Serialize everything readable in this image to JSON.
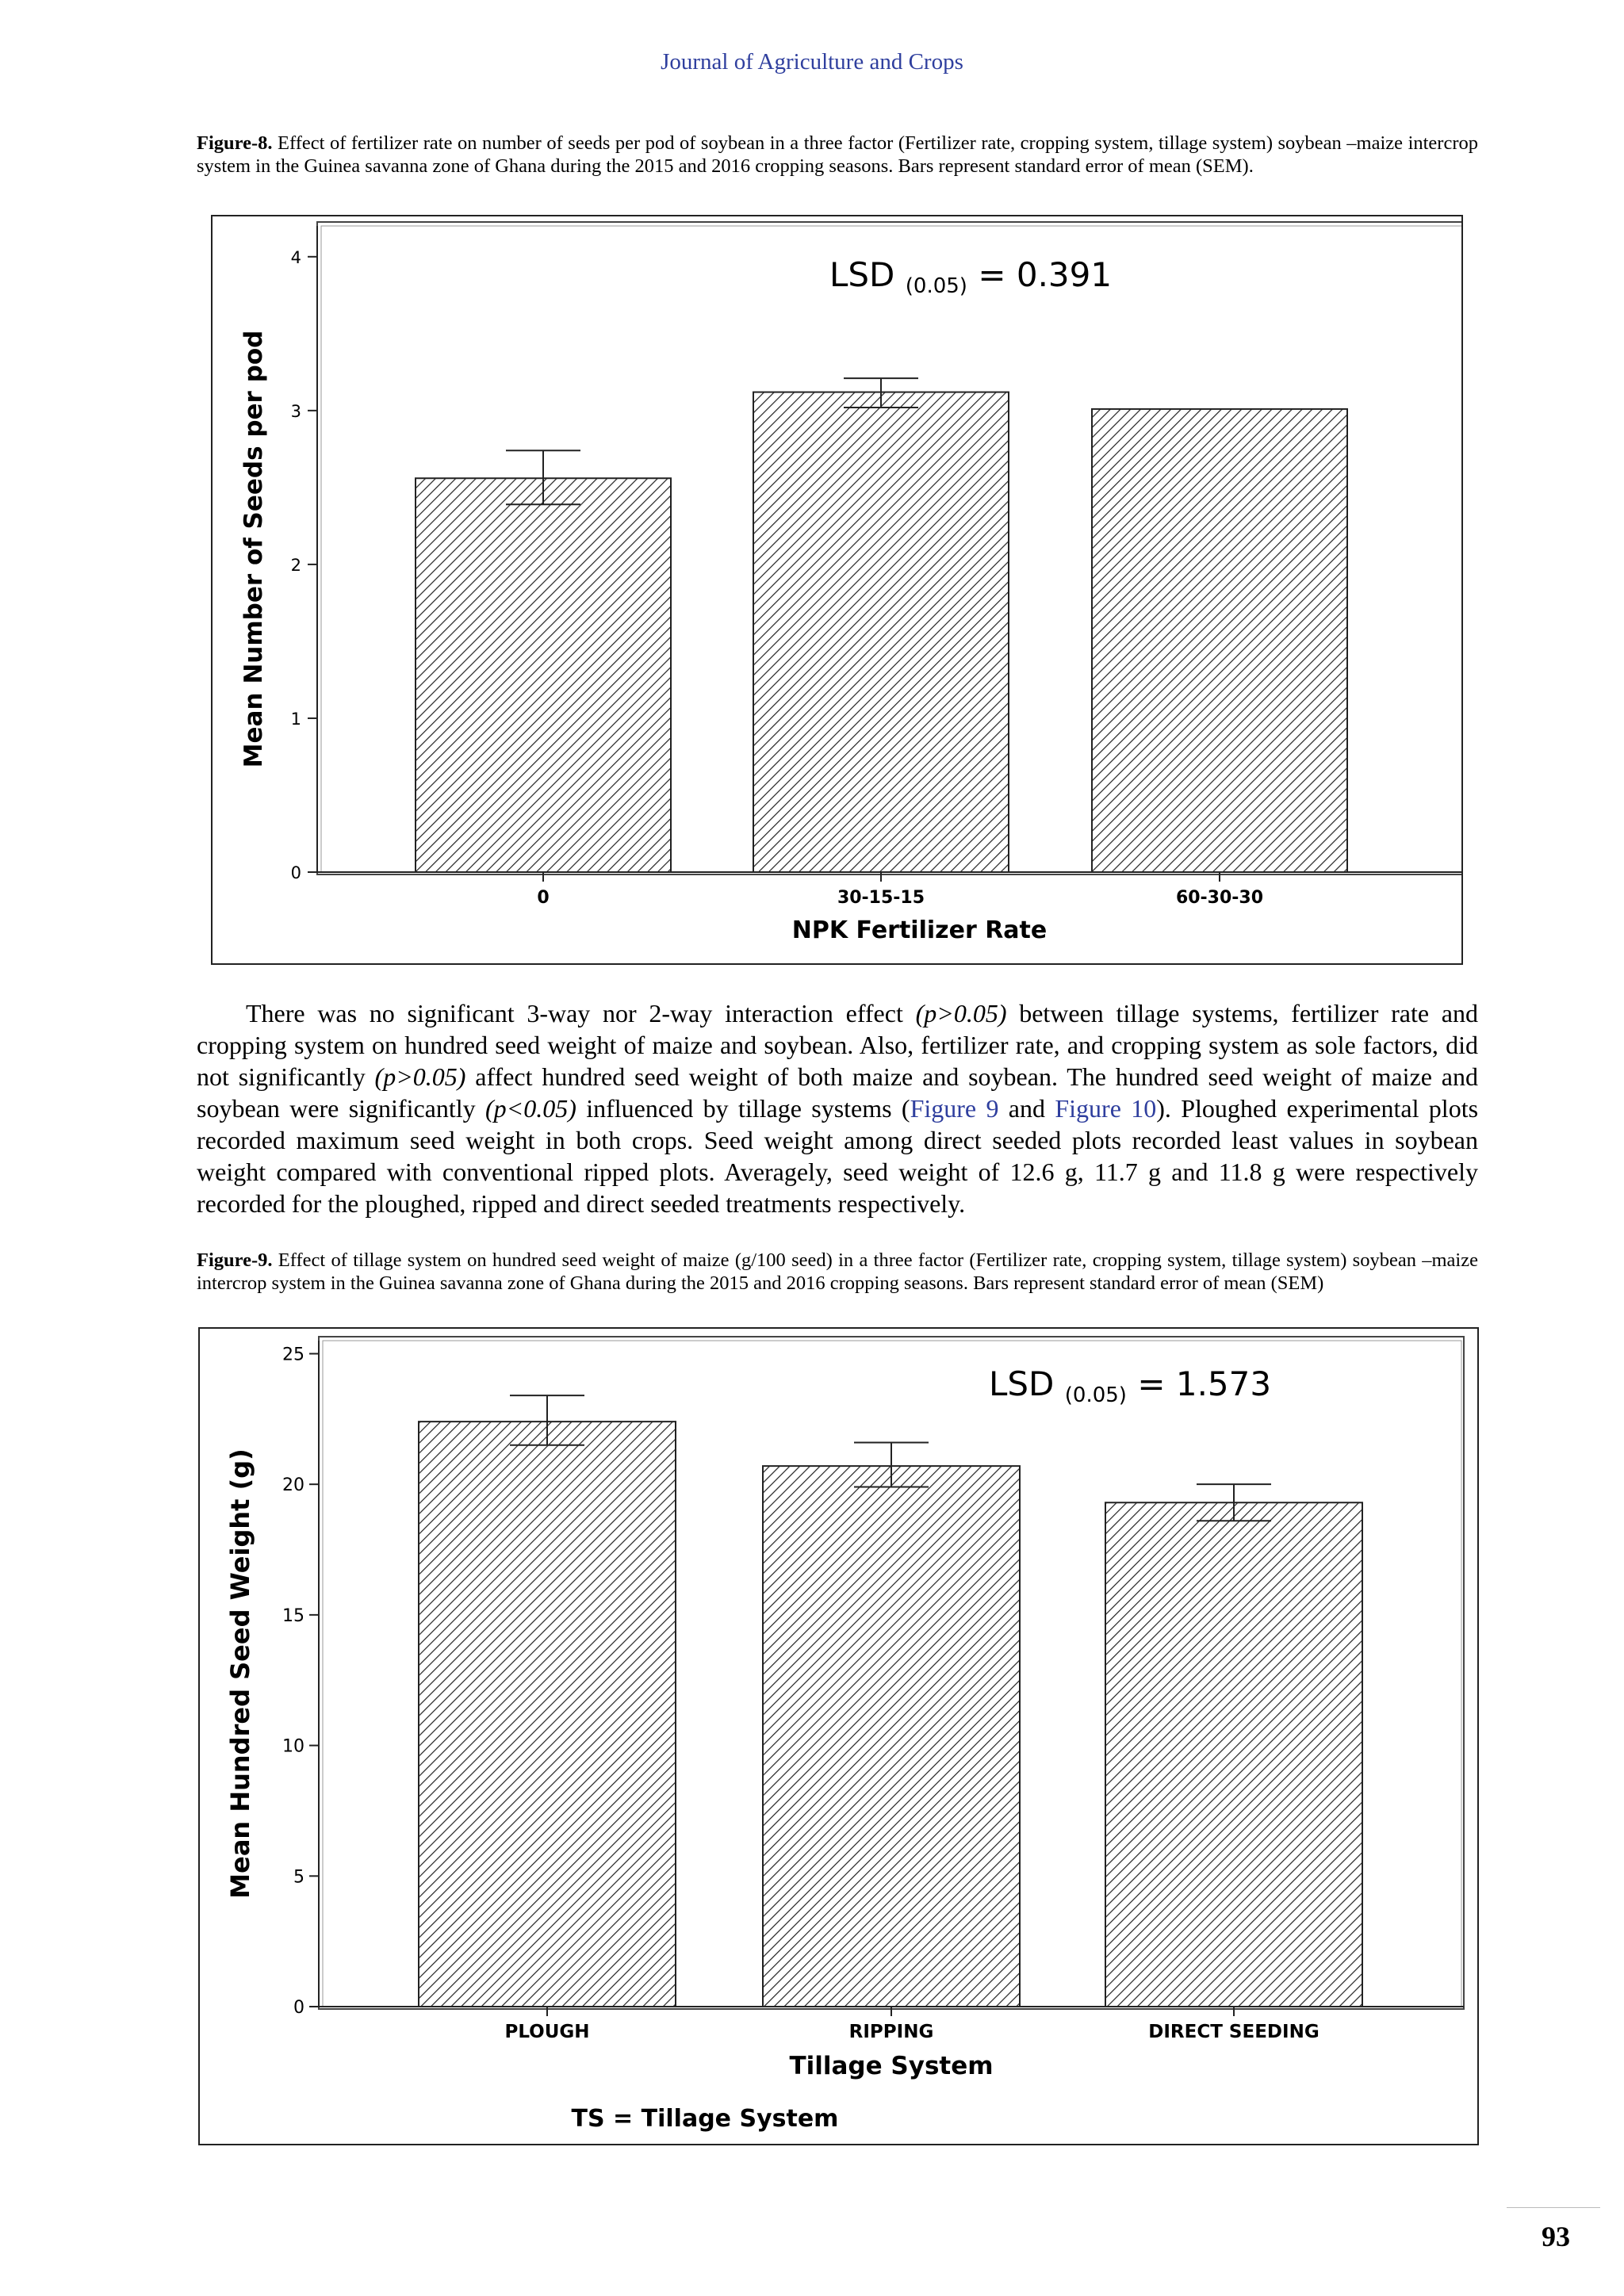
{
  "journal_title": "Journal of Agriculture and Crops",
  "figure8": {
    "caption_label": "Figure-8.",
    "caption_text": " Effect of fertilizer rate on number of seeds per pod of soybean in a three factor (Fertilizer rate, cropping system, tillage system) soybean –maize intercrop system in the Guinea savanna zone of Ghana during the 2015 and 2016 cropping seasons. Bars represent standard error of mean (SEM).",
    "lsd_main": "LSD",
    "lsd_sub": "(0.05)",
    "lsd_value": "= 0.391"
  },
  "paragraph": {
    "t1": "There was no significant 3-way nor 2-way interaction effect ",
    "i1": "(p>0.05)",
    "t2": " between tillage systems, fertilizer rate and cropping system on hundred seed weight of maize and soybean. Also, fertilizer rate, and cropping system as sole factors, did not significantly ",
    "i2": "(p>0.05)",
    "t3": " affect hundred seed weight of both maize and soybean. The hundred seed weight of maize and soybean were significantly ",
    "i3": "(p<0.05)",
    "t4": " influenced by tillage systems (",
    "ref1": "Figure 9",
    "t5": " and ",
    "ref2": "Figure 10",
    "t6": "). Ploughed experimental plots recorded maximum seed weight in both crops. Seed weight among direct seeded plots recorded least values in soybean weight compared with conventional ripped plots. Averagely, seed weight of 12.6 g, 11.7 g and 11.8 g were respectively recorded for the ploughed, ripped and direct seeded treatments respectively."
  },
  "figure9": {
    "caption_label": "Figure-9.",
    "caption_text": " Effect of tillage system on hundred seed weight of maize (g/100 seed) in a three factor (Fertilizer rate, cropping system, tillage system) soybean –maize intercrop system in the Guinea savanna zone of Ghana during the 2015 and 2016 cropping seasons. Bars represent standard error of mean (SEM)",
    "lsd_main": "LSD",
    "lsd_sub": "(0.05)",
    "lsd_value": "= 1.573",
    "footnote": "TS = Tillage System"
  },
  "page_number": "93",
  "chart_data": [
    {
      "type": "bar",
      "title": "",
      "xlabel": "NPK Fertilizer Rate",
      "ylabel": "Mean Number of Seeds per pod",
      "categories": [
        "0",
        "30-15-15",
        "60-30-30"
      ],
      "values": [
        2.56,
        3.12,
        3.01
      ],
      "error_low": [
        2.39,
        3.02,
        3.01
      ],
      "error_high": [
        2.74,
        3.21,
        3.01
      ],
      "ylim": [
        0,
        4.2
      ],
      "yticks": [
        "0",
        "1",
        "2",
        "3",
        "4"
      ],
      "bar_fill": "diagonal-hatch",
      "grid": false
    },
    {
      "type": "bar",
      "title": "",
      "xlabel": "Tillage System",
      "ylabel": "Mean Hundred Seed Weight (g)",
      "categories": [
        "PLOUGH",
        "RIPPING",
        "DIRECT SEEDING"
      ],
      "values": [
        22.4,
        20.7,
        19.3
      ],
      "error_low": [
        21.5,
        19.9,
        18.6
      ],
      "error_high": [
        23.4,
        21.6,
        20.0
      ],
      "ylim": [
        0,
        25.5
      ],
      "yticks": [
        "0",
        "5",
        "10",
        "15",
        "20",
        "25"
      ],
      "bar_fill": "diagonal-hatch",
      "grid": false
    }
  ]
}
